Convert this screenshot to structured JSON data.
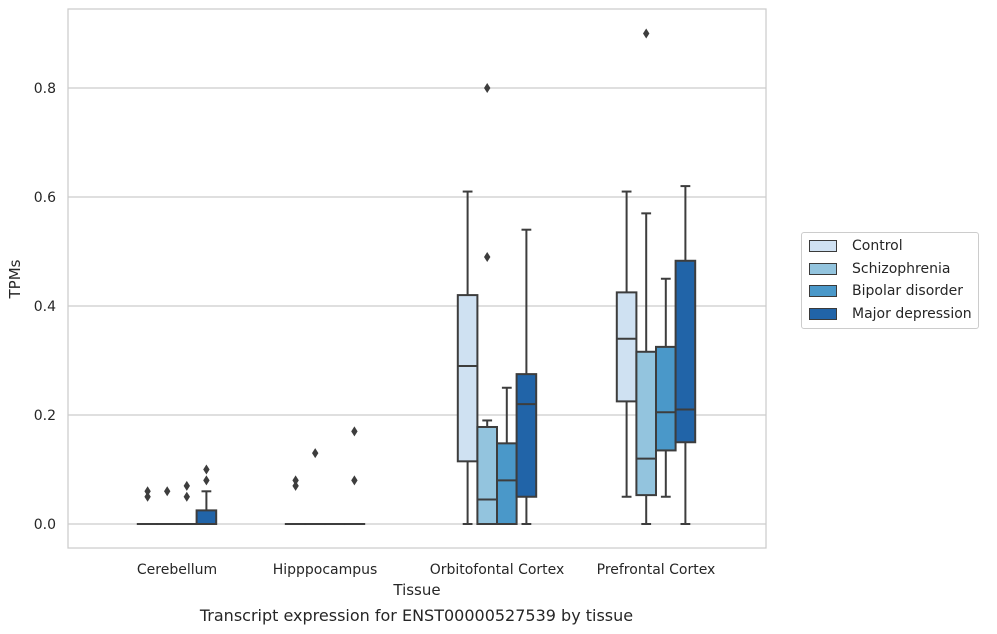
{
  "chart_data": {
    "type": "box",
    "xlabel": "Tissue",
    "ylabel": "TPMs",
    "ylim": [
      -0.043,
      0.945
    ],
    "yticks": [
      "0.0",
      "0.2",
      "0.4",
      "0.6",
      "0.8"
    ],
    "grid": true,
    "legend_position": "right",
    "categories": [
      "Cerebellum",
      "Hipppocampus",
      "Orbitofontal Cortex",
      "Prefrontal Cortex"
    ],
    "series": [
      {
        "name": "Control",
        "color": "#cfe1f2",
        "boxes": [
          {
            "q1": 0,
            "median": 0,
            "q3": 0,
            "whisker_low": 0,
            "whisker_high": 0,
            "outliers": [
              0.05,
              0.06
            ]
          },
          {
            "q1": 0,
            "median": 0,
            "q3": 0,
            "whisker_low": 0,
            "whisker_high": 0,
            "outliers": [
              0.07,
              0.08
            ]
          },
          {
            "q1": 0.115,
            "median": 0.29,
            "q3": 0.42,
            "whisker_low": 0,
            "whisker_high": 0.61,
            "outliers": []
          },
          {
            "q1": 0.225,
            "median": 0.34,
            "q3": 0.425,
            "whisker_low": 0.05,
            "whisker_high": 0.61,
            "outliers": []
          }
        ]
      },
      {
        "name": "Schizophrenia",
        "color": "#93c4de",
        "boxes": [
          {
            "q1": 0,
            "median": 0,
            "q3": 0,
            "whisker_low": 0,
            "whisker_high": 0,
            "outliers": [
              0.06
            ]
          },
          {
            "q1": 0,
            "median": 0,
            "q3": 0,
            "whisker_low": 0,
            "whisker_high": 0,
            "outliers": [
              0.13
            ]
          },
          {
            "q1": 0,
            "median": 0.045,
            "q3": 0.178,
            "whisker_low": 0,
            "whisker_high": 0.19,
            "outliers": [
              0.49,
              0.8
            ]
          },
          {
            "q1": 0.053,
            "median": 0.12,
            "q3": 0.316,
            "whisker_low": 0,
            "whisker_high": 0.57,
            "outliers": [
              0.9
            ]
          }
        ]
      },
      {
        "name": "Bipolar disorder",
        "color": "#4a98c9",
        "boxes": [
          {
            "q1": 0,
            "median": 0,
            "q3": 0,
            "whisker_low": 0,
            "whisker_high": 0,
            "outliers": [
              0.05,
              0.07
            ]
          },
          {
            "q1": 0,
            "median": 0,
            "q3": 0,
            "whisker_low": 0,
            "whisker_high": 0,
            "outliers": []
          },
          {
            "q1": 0,
            "median": 0.08,
            "q3": 0.148,
            "whisker_low": 0,
            "whisker_high": 0.25,
            "outliers": []
          },
          {
            "q1": 0.135,
            "median": 0.205,
            "q3": 0.325,
            "whisker_low": 0.05,
            "whisker_high": 0.45,
            "outliers": []
          }
        ]
      },
      {
        "name": "Major depression",
        "color": "#2164a8",
        "boxes": [
          {
            "q1": 0,
            "median": 0,
            "q3": 0.025,
            "whisker_low": 0,
            "whisker_high": 0.06,
            "outliers": [
              0.08,
              0.1
            ]
          },
          {
            "q1": 0,
            "median": 0,
            "q3": 0,
            "whisker_low": 0,
            "whisker_high": 0,
            "outliers": [
              0.08,
              0.17
            ]
          },
          {
            "q1": 0.05,
            "median": 0.22,
            "q3": 0.275,
            "whisker_low": 0,
            "whisker_high": 0.54,
            "outliers": []
          },
          {
            "q1": 0.15,
            "median": 0.21,
            "q3": 0.483,
            "whisker_low": 0,
            "whisker_high": 0.62,
            "outliers": []
          }
        ]
      }
    ],
    "caption": "Transcript expression for ENST00000527539 by tissue"
  }
}
